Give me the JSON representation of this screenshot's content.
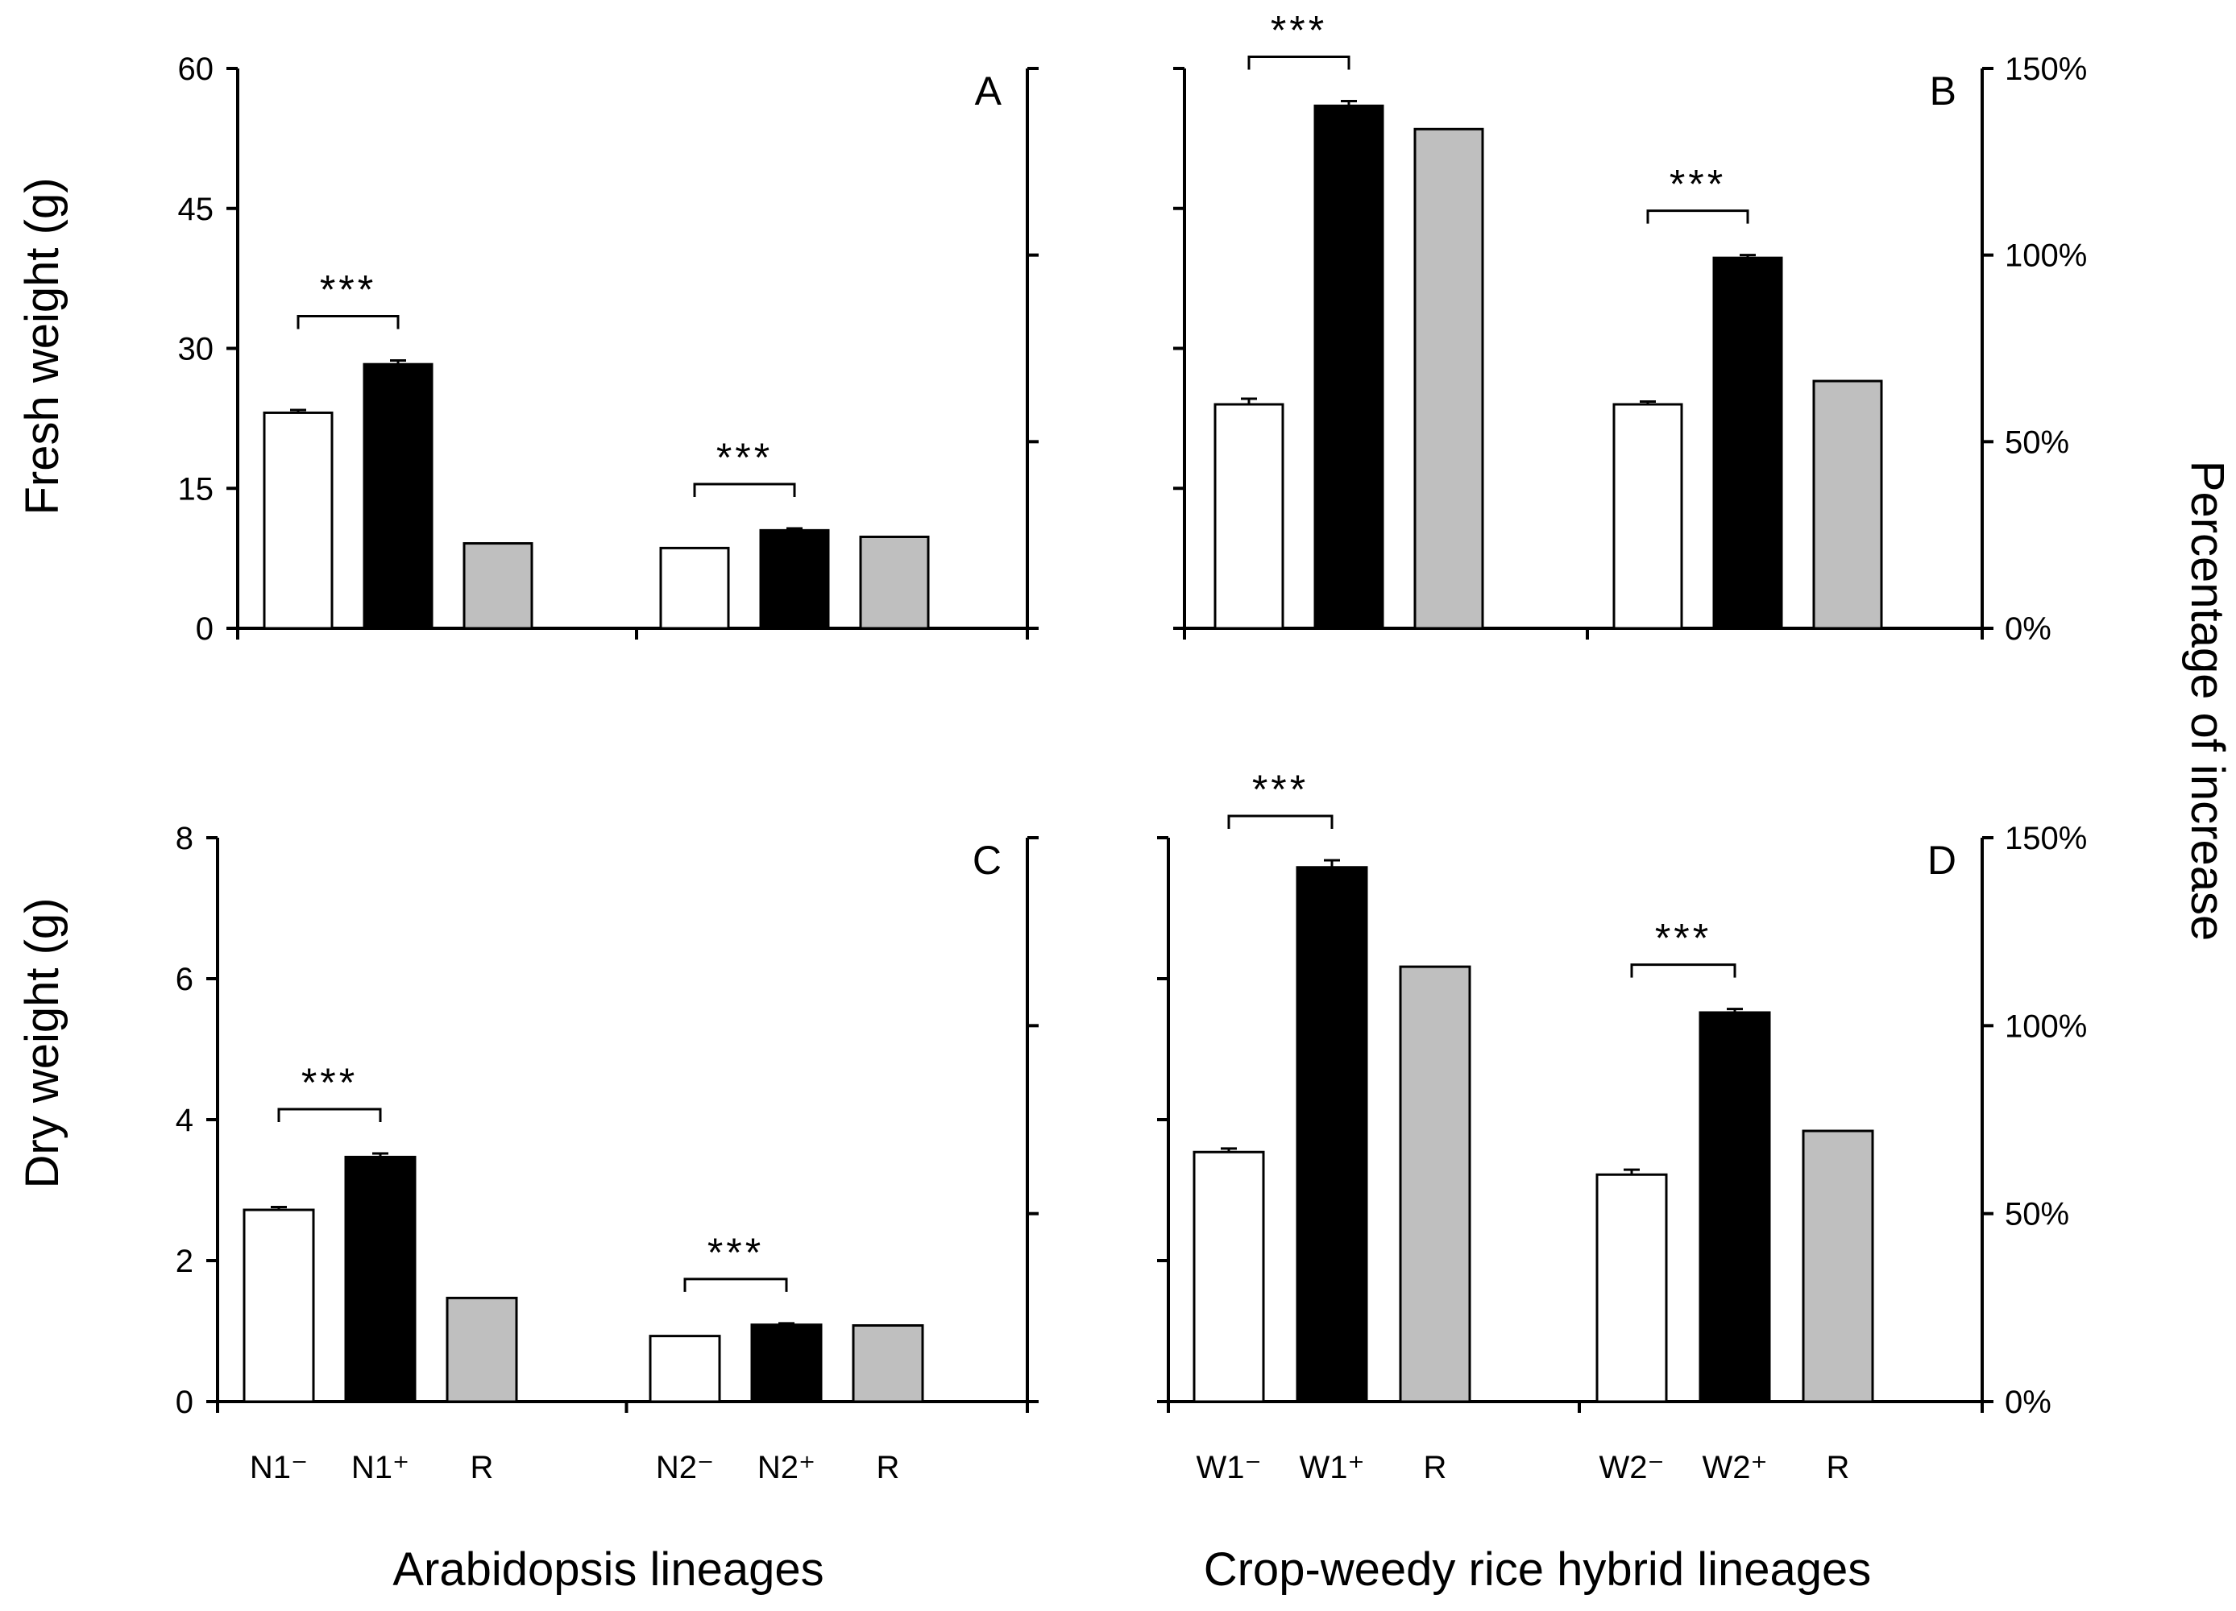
{
  "figure": {
    "left_ylabel_top": "Fresh weight (g)",
    "left_ylabel_bottom": "Dry weight (g)",
    "right_ylabel": "Percentage of increase",
    "xlabel_left": "Arabidopsis lineages",
    "xlabel_right": "Crop-weedy rice hybrid lineages"
  },
  "colors": {
    "minus": "#ffffff",
    "plus": "#000000",
    "R": "#bfbfbf"
  },
  "chart_data": [
    {
      "type": "bar",
      "panel": "A",
      "ylabel": "Fresh weight (g)",
      "ylim": [
        0,
        60
      ],
      "yticks": [
        0,
        15,
        30,
        45,
        60
      ],
      "right_axis": false,
      "groups": [
        {
          "categories": [
            "N1⁻",
            "N1⁺",
            "R"
          ],
          "kinds": [
            "minus",
            "plus",
            "R"
          ],
          "values": [
            23.1,
            28.3,
            9.1
          ],
          "errors": [
            0.3,
            0.4,
            0
          ],
          "significance": "***"
        },
        {
          "categories": [
            "N2⁻",
            "N2⁺",
            "R"
          ],
          "kinds": [
            "minus",
            "plus",
            "R"
          ],
          "values": [
            8.6,
            10.5,
            9.8
          ],
          "errors": [
            0,
            0.2,
            0
          ],
          "significance": "***"
        }
      ]
    },
    {
      "type": "bar",
      "panel": "B",
      "ylabel": "Fresh weight (g)",
      "ylim": [
        0,
        60
      ],
      "yticks": [
        0,
        15,
        30,
        45,
        60
      ],
      "right_axis": true,
      "right_ylim": [
        0,
        150
      ],
      "right_yticks": [
        "0%",
        "50%",
        "100%",
        "150%"
      ],
      "groups": [
        {
          "categories": [
            "W1⁻",
            "W1⁺",
            "R"
          ],
          "kinds": [
            "minus",
            "plus",
            "R"
          ],
          "values": [
            24.0,
            56.0,
            53.5
          ],
          "errors": [
            0.6,
            0.5,
            0
          ],
          "significance": "***"
        },
        {
          "categories": [
            "W2⁻",
            "W2⁺",
            "R"
          ],
          "kinds": [
            "minus",
            "plus",
            "R"
          ],
          "values": [
            24.0,
            39.7,
            26.5
          ],
          "errors": [
            0.3,
            0.3,
            0
          ],
          "significance": "***"
        }
      ]
    },
    {
      "type": "bar",
      "panel": "C",
      "ylabel": "Dry weight (g)",
      "ylim": [
        0,
        8
      ],
      "yticks": [
        0,
        2,
        4,
        6,
        8
      ],
      "right_axis": false,
      "groups": [
        {
          "categories": [
            "N1⁻",
            "N1⁺",
            "R"
          ],
          "kinds": [
            "minus",
            "plus",
            "R"
          ],
          "values": [
            2.72,
            3.47,
            1.47
          ],
          "errors": [
            0.04,
            0.05,
            0
          ],
          "significance": "***"
        },
        {
          "categories": [
            "N2⁻",
            "N2⁺",
            "R"
          ],
          "kinds": [
            "minus",
            "plus",
            "R"
          ],
          "values": [
            0.93,
            1.09,
            1.08
          ],
          "errors": [
            0,
            0.02,
            0
          ],
          "significance": "***"
        }
      ]
    },
    {
      "type": "bar",
      "panel": "D",
      "ylabel": "Dry weight (g)",
      "ylim": [
        0,
        8
      ],
      "yticks": [
        0,
        2,
        4,
        6,
        8
      ],
      "right_axis": true,
      "right_ylim": [
        0,
        150
      ],
      "right_yticks": [
        "0%",
        "50%",
        "100%",
        "150%"
      ],
      "groups": [
        {
          "categories": [
            "W1⁻",
            "W1⁺",
            "R"
          ],
          "kinds": [
            "minus",
            "plus",
            "R"
          ],
          "values": [
            3.54,
            7.58,
            6.17
          ],
          "errors": [
            0.05,
            0.1,
            0
          ],
          "significance": "***"
        },
        {
          "categories": [
            "W2⁻",
            "W2⁺",
            "R"
          ],
          "kinds": [
            "minus",
            "plus",
            "R"
          ],
          "values": [
            3.22,
            5.52,
            3.84
          ],
          "errors": [
            0.07,
            0.05,
            0
          ],
          "significance": "***"
        }
      ]
    }
  ]
}
